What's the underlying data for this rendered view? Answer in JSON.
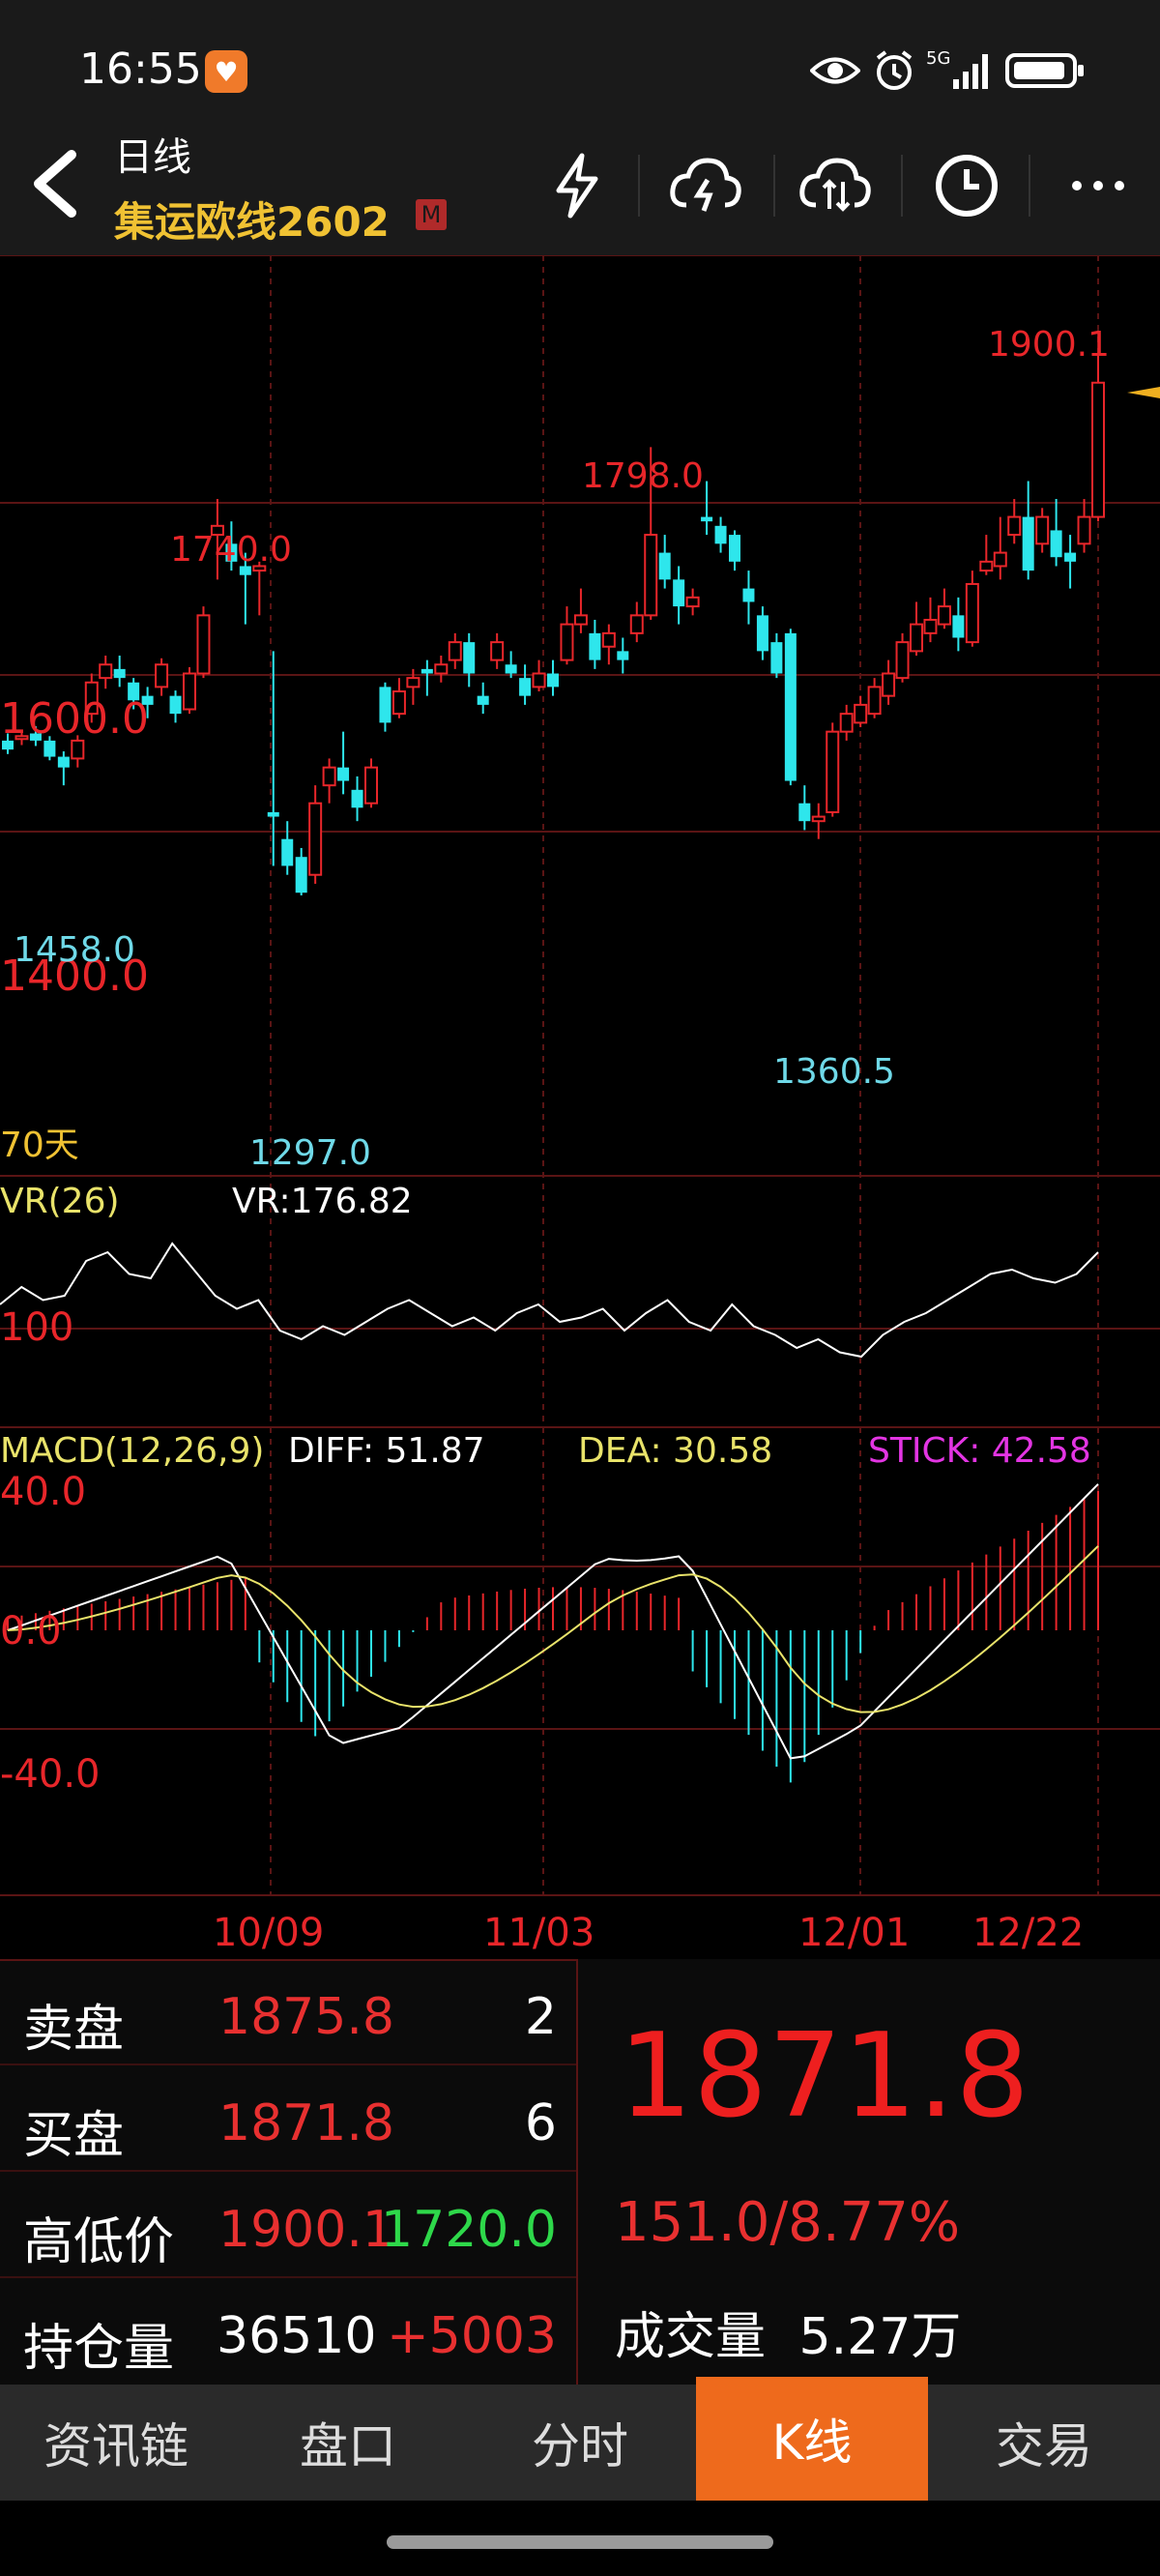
{
  "status_bar": {
    "time": "16:55",
    "network": "5G"
  },
  "nav": {
    "period": "日线",
    "instrument": "集运欧线2602",
    "badge": "M"
  },
  "chart": {
    "price_axis": [
      "1600.0",
      "1400.0"
    ],
    "range_label": "70天",
    "peak_labels": {
      "high_main": "1900.1",
      "h1": "1740.0",
      "h2": "1798.0",
      "low1": "1458.0",
      "low2": "1297.0",
      "low3": "1360.5"
    },
    "vr": {
      "title": "VR(26)",
      "value_label": "VR:176.82",
      "axis": "100"
    },
    "macd": {
      "title": "MACD(12,26,9)",
      "diff": "DIFF: 51.87",
      "dea": "DEA: 30.58",
      "stick": "STICK: 42.58",
      "axis_top": "40.0",
      "axis_mid": "0.0",
      "axis_bot": "-40.0"
    },
    "dates": [
      "10/09",
      "11/03",
      "12/01",
      "12/22"
    ],
    "colors": {
      "up": "#e8262a",
      "down": "#2ee6ec",
      "grid": "#5a1414",
      "dea": "#e9e36a",
      "stick": "#e335e3"
    }
  },
  "quote": {
    "sell_label": "卖盘",
    "sell_price": "1875.8",
    "sell_qty": "2",
    "buy_label": "买盘",
    "buy_price": "1871.8",
    "buy_qty": "6",
    "hl_label": "高低价",
    "high": "1900.1",
    "low": "1720.0",
    "oi_label": "持仓量",
    "oi": "36510",
    "oi_change": "+5003",
    "last": "1871.8",
    "change": "151.0/8.77%",
    "volume_label": "成交量",
    "volume": "5.27万"
  },
  "tabs": [
    "资讯链",
    "盘口",
    "分时",
    "K线",
    "交易"
  ],
  "active_tab": "K线"
}
